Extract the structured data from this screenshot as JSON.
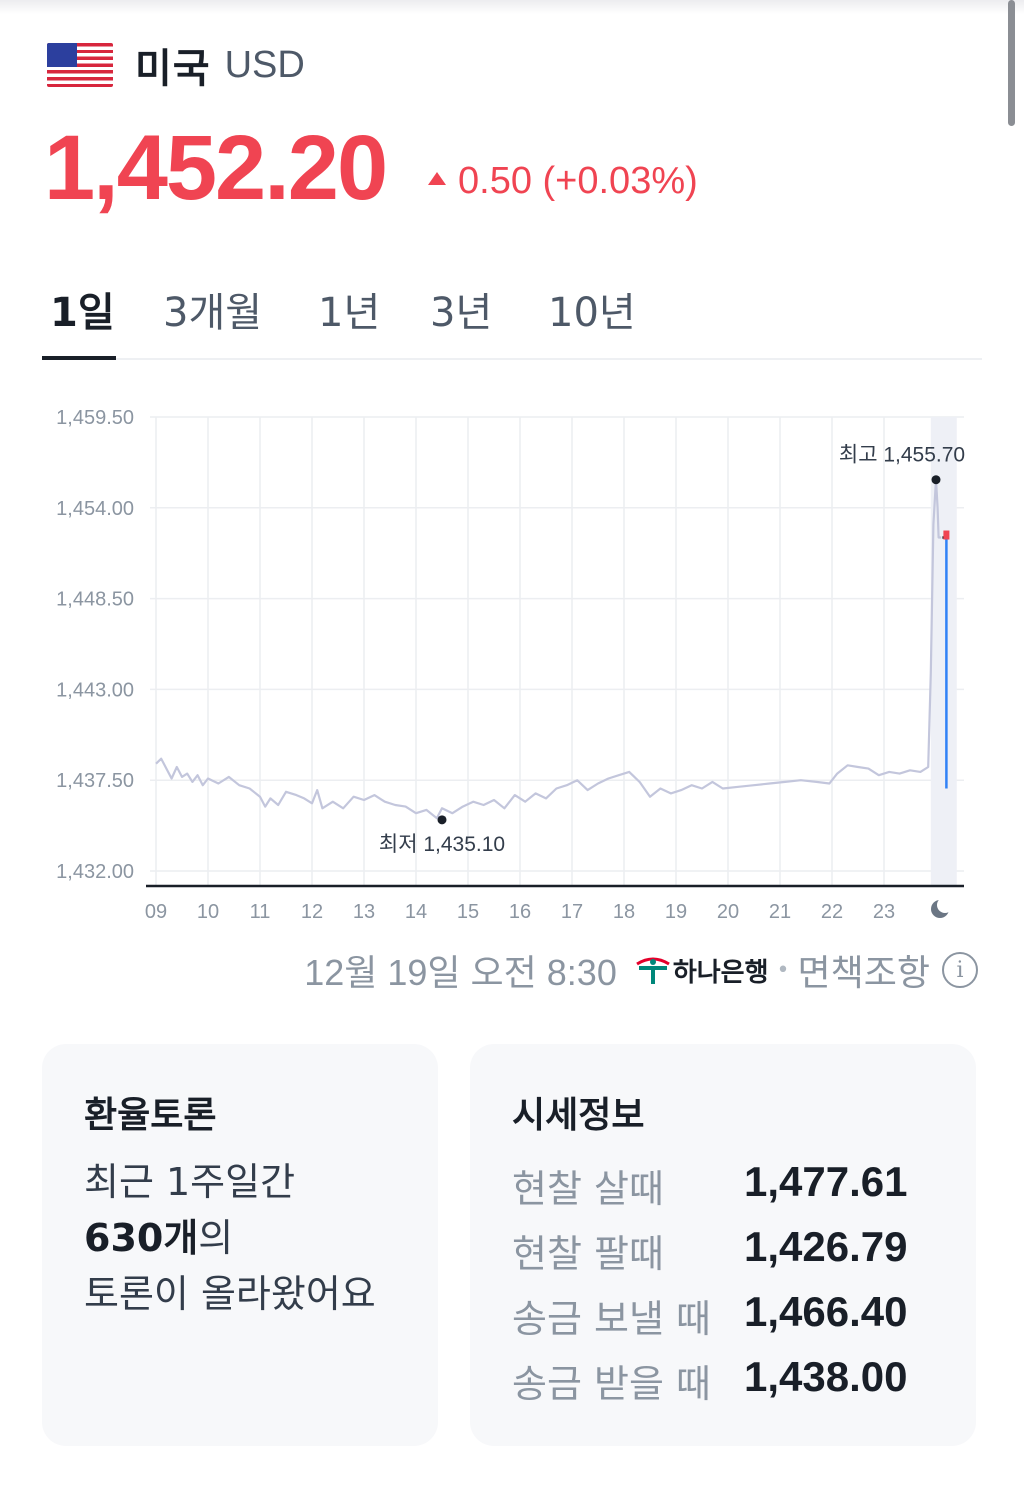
{
  "header": {
    "country": "미국",
    "currency_code": "USD"
  },
  "quote": {
    "price": "1,452.20",
    "change": "0.50 (+0.03%)",
    "direction": "up",
    "up_color": "#f04452"
  },
  "tabs": [
    {
      "label": "1일",
      "active": true
    },
    {
      "label": "3개월",
      "active": false
    },
    {
      "label": "1년",
      "active": false
    },
    {
      "label": "3년",
      "active": false
    },
    {
      "label": "10년",
      "active": false
    }
  ],
  "chart_data": {
    "type": "line",
    "y_ticks": [
      "1,459.50",
      "1,454.00",
      "1,448.50",
      "1,443.00",
      "1,437.50",
      "1,432.00"
    ],
    "ylim": [
      1432.0,
      1459.5
    ],
    "x_ticks": [
      "09",
      "10",
      "11",
      "12",
      "13",
      "14",
      "15",
      "16",
      "17",
      "18",
      "19",
      "20",
      "21",
      "22",
      "23"
    ],
    "xlim": [
      9,
      24.3
    ],
    "night_marker": "moon-icon",
    "grid": true,
    "series": [
      {
        "line_color": "#c3c6dc",
        "x": [
          9.0,
          9.1,
          9.2,
          9.3,
          9.4,
          9.5,
          9.6,
          9.7,
          9.8,
          9.9,
          10.0,
          10.2,
          10.4,
          10.6,
          10.8,
          11.0,
          11.1,
          11.2,
          11.35,
          11.5,
          11.7,
          11.85,
          12.0,
          12.1,
          12.2,
          12.4,
          12.6,
          12.8,
          13.0,
          13.2,
          13.4,
          13.6,
          13.8,
          14.0,
          14.2,
          14.4,
          14.5,
          14.7,
          14.9,
          15.1,
          15.3,
          15.5,
          15.7,
          15.9,
          16.1,
          16.3,
          16.5,
          16.7,
          16.9,
          17.1,
          17.3,
          17.5,
          17.7,
          17.9,
          18.1,
          18.3,
          18.5,
          18.7,
          18.9,
          19.1,
          19.3,
          19.5,
          19.7,
          19.9,
          20.2,
          20.5,
          20.8,
          21.1,
          21.4,
          21.7,
          21.95,
          22.1,
          22.3,
          22.5,
          22.7,
          22.9,
          23.1,
          23.3,
          23.5,
          23.7,
          23.85,
          23.9,
          23.95,
          24.0,
          24.03,
          24.05,
          24.1
        ],
        "values": [
          1438.5,
          1438.8,
          1438.2,
          1437.6,
          1438.3,
          1437.7,
          1437.9,
          1437.4,
          1437.8,
          1437.2,
          1437.6,
          1437.3,
          1437.7,
          1437.2,
          1437.0,
          1436.5,
          1435.9,
          1436.4,
          1436.0,
          1436.8,
          1436.6,
          1436.4,
          1436.1,
          1436.9,
          1435.8,
          1436.2,
          1435.8,
          1436.5,
          1436.3,
          1436.6,
          1436.2,
          1436.0,
          1435.9,
          1435.5,
          1435.7,
          1435.2,
          1435.8,
          1435.5,
          1435.9,
          1436.2,
          1436.0,
          1436.3,
          1435.8,
          1436.6,
          1436.2,
          1436.7,
          1436.4,
          1437.0,
          1437.2,
          1437.5,
          1436.9,
          1437.3,
          1437.6,
          1437.8,
          1438.0,
          1437.4,
          1436.5,
          1437.0,
          1436.7,
          1436.9,
          1437.2,
          1437.0,
          1437.4,
          1437.0,
          1437.1,
          1437.2,
          1437.3,
          1437.4,
          1437.5,
          1437.4,
          1437.3,
          1437.9,
          1438.4,
          1438.3,
          1438.2,
          1437.8,
          1438.0,
          1437.9,
          1438.1,
          1438.0,
          1438.3,
          1444.0,
          1453.0,
          1455.7,
          1454.0,
          1452.2,
          1452.2
        ]
      }
    ],
    "current": {
      "value": 1452.2,
      "line_color": "#3182f6",
      "marker_color": "#f04452"
    },
    "annotations": {
      "high": {
        "label": "최고 1,455.70",
        "x": 24.0,
        "value": 1455.7
      },
      "low": {
        "label": "최저 1,435.10",
        "x": 14.5,
        "value": 1435.1
      }
    }
  },
  "source": {
    "timestamp": "12월 19일 오전 8:30",
    "bank_name": "하나은행",
    "bank_color": "#00877a",
    "separator": "•",
    "disclaimer": "면책조항",
    "info_icon": "ⓘ"
  },
  "discussion_card": {
    "title": "환율토론",
    "line1": "최근 1주일간",
    "count": "630개",
    "count_suffix": "의",
    "line3": "토론이 올라왔어요"
  },
  "quote_card": {
    "title": "시세정보",
    "rows": [
      {
        "label": "현찰 살때",
        "value": "1,477.61"
      },
      {
        "label": "현찰 팔때",
        "value": "1,426.79"
      },
      {
        "label": "송금 보낼 때",
        "value": "1,466.40"
      },
      {
        "label": "송금 받을 때",
        "value": "1,438.00"
      }
    ]
  }
}
